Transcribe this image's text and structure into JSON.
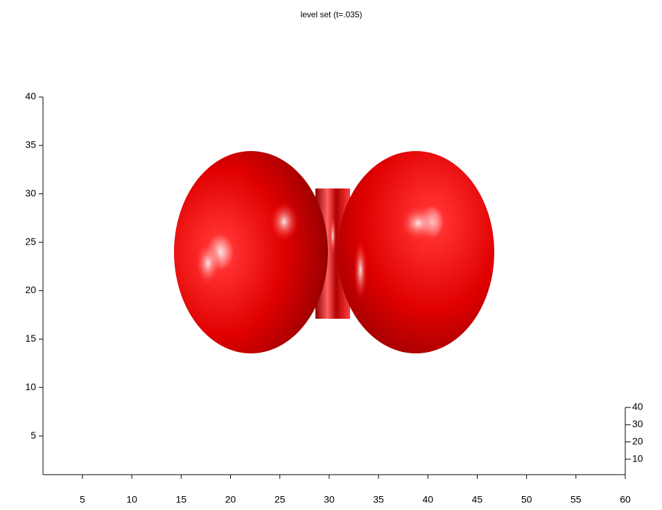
{
  "chart_data": {
    "type": "isosurface",
    "title": "level set (t=.035)",
    "xlim": [
      1,
      60
    ],
    "xticks": [
      5,
      10,
      15,
      20,
      25,
      30,
      35,
      40,
      45,
      50,
      55,
      60
    ],
    "ylim": [
      1,
      40
    ],
    "yticks": [
      5,
      10,
      15,
      20,
      25,
      30,
      35,
      40
    ],
    "zlim": [
      1,
      40
    ],
    "zticks": [
      10,
      20,
      30,
      40
    ],
    "color": "#e00000"
  }
}
